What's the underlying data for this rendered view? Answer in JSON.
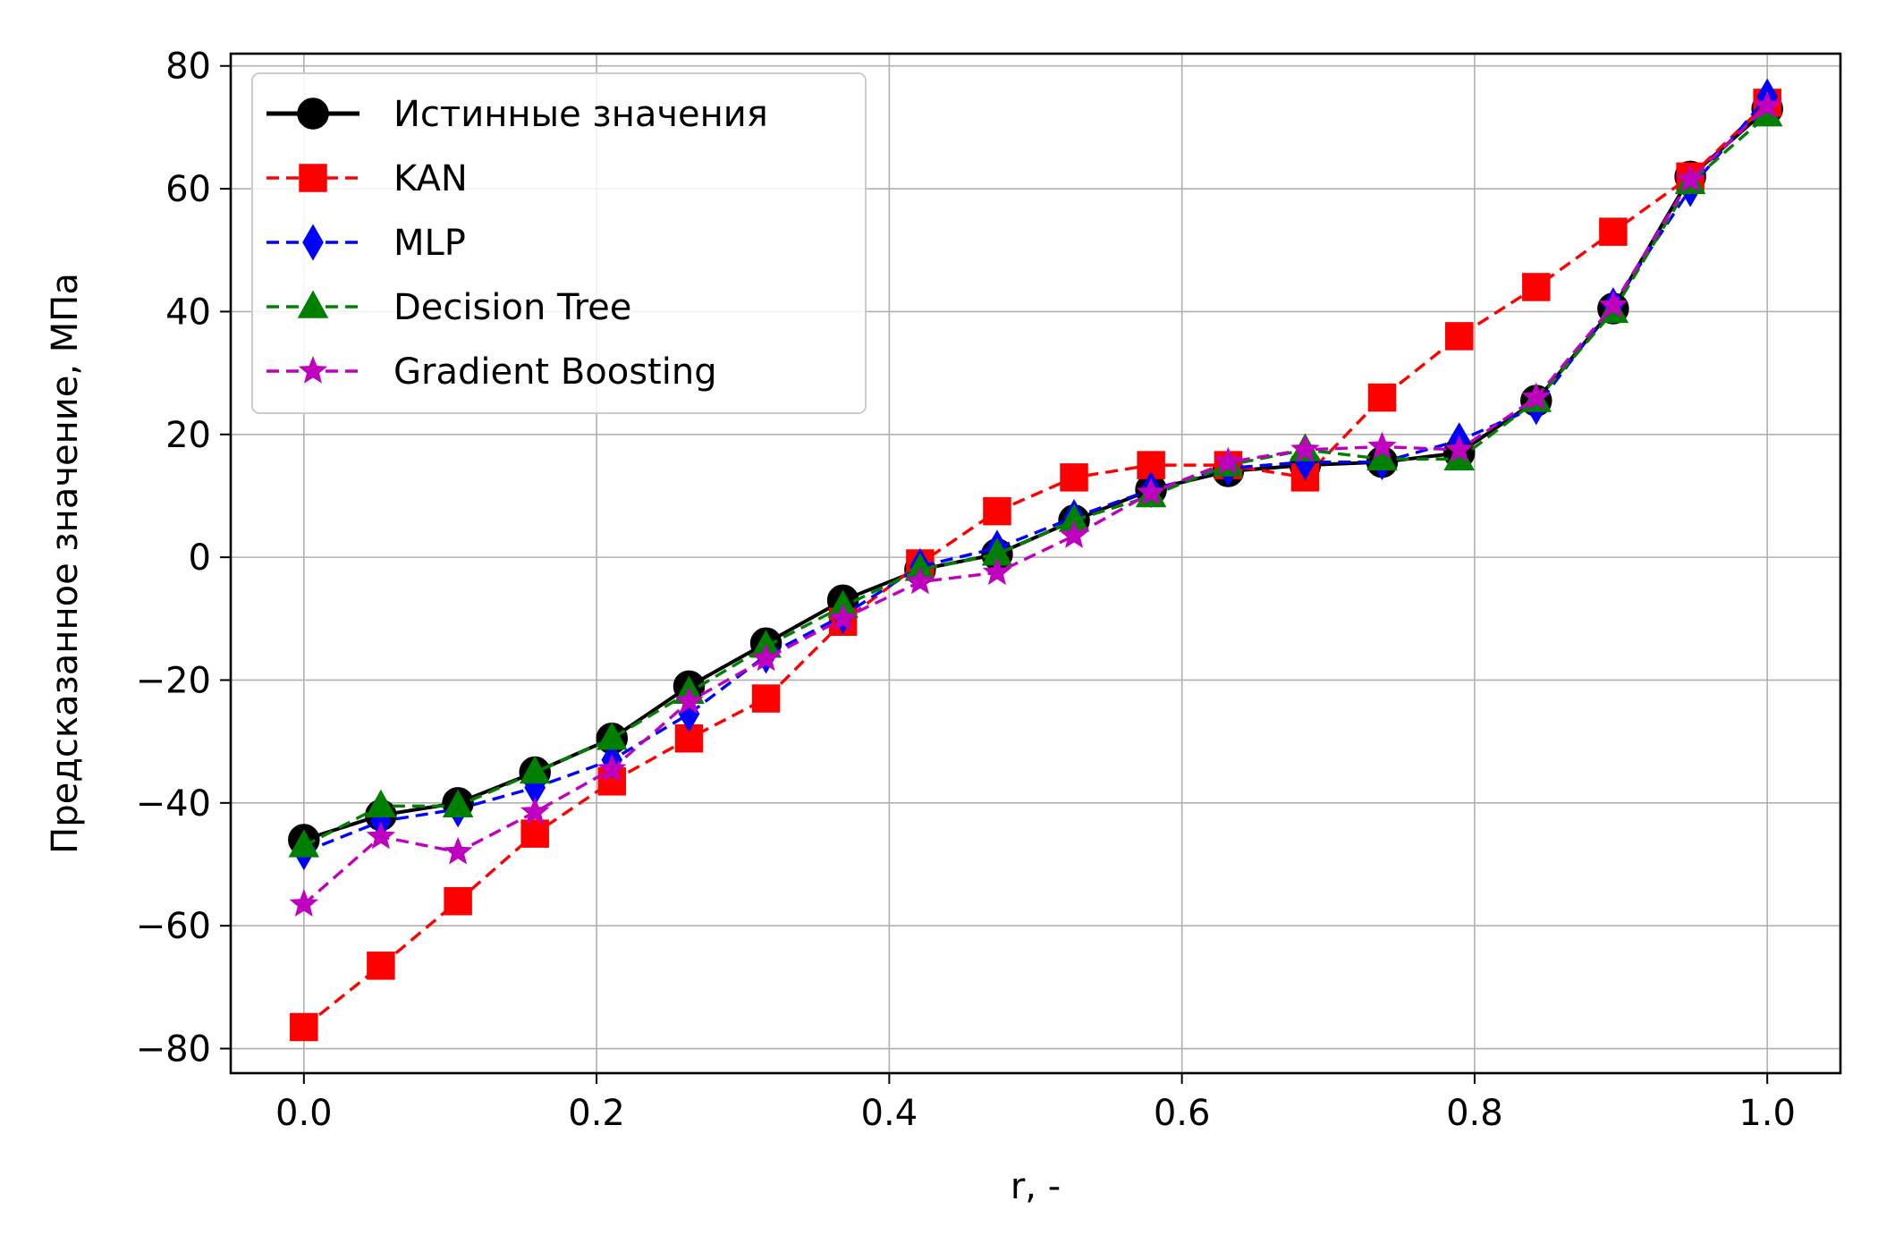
{
  "chart_data": {
    "type": "line",
    "xlabel": "r, -",
    "ylabel": "Предсказанное значение, МПа",
    "xlim": [
      -0.05,
      1.05
    ],
    "ylim": [
      -84,
      82
    ],
    "xticks": [
      0.0,
      0.2,
      0.4,
      0.6,
      0.8,
      1.0
    ],
    "xtick_labels": [
      "0.0",
      "0.2",
      "0.4",
      "0.6",
      "0.8",
      "1.0"
    ],
    "yticks": [
      -80,
      -60,
      -40,
      -20,
      0,
      20,
      40,
      60,
      80
    ],
    "ytick_labels": [
      "−80",
      "−60",
      "−40",
      "−20",
      "0",
      "20",
      "40",
      "60",
      "80"
    ],
    "grid": true,
    "legend_position": "upper-left",
    "x": [
      0.0,
      0.0526,
      0.1053,
      0.1579,
      0.2105,
      0.2632,
      0.3158,
      0.3684,
      0.4211,
      0.4737,
      0.5263,
      0.5789,
      0.6316,
      0.6842,
      0.7368,
      0.7895,
      0.8421,
      0.8947,
      0.9474,
      1.0
    ],
    "series": [
      {
        "name": "Истинные значения",
        "color": "#000000",
        "marker": "circle",
        "linestyle": "solid",
        "values": [
          -46,
          -42,
          -40,
          -35,
          -29.5,
          -21,
          -14,
          -7,
          -2,
          0.5,
          6,
          11,
          14,
          15,
          15.5,
          17,
          25.5,
          40.5,
          62,
          73
        ]
      },
      {
        "name": "KAN",
        "color": "#ff0000",
        "marker": "square",
        "linestyle": "dashed",
        "values": [
          -76.5,
          -66.5,
          -56,
          -45,
          -36.5,
          -29.5,
          -23,
          -10.5,
          -1,
          7.5,
          13,
          15,
          15,
          13,
          26,
          36,
          44,
          53,
          62,
          74
        ]
      },
      {
        "name": "MLP",
        "color": "#0000ff",
        "marker": "thin_diamond",
        "linestyle": "dashed",
        "values": [
          -48,
          -43,
          -41,
          -37.5,
          -33,
          -25.5,
          -16,
          -9.5,
          -1.5,
          1.5,
          6.5,
          11,
          14.5,
          15.5,
          15.5,
          19,
          24.5,
          41,
          60,
          75
        ]
      },
      {
        "name": "Decision Tree",
        "color": "#008000",
        "marker": "triangle",
        "linestyle": "dashed",
        "values": [
          -47,
          -40.5,
          -40.5,
          -35,
          -29.5,
          -22,
          -14.5,
          -8,
          -2,
          0.5,
          6,
          10,
          15,
          17.5,
          16,
          16,
          25.5,
          40,
          61,
          72
        ]
      },
      {
        "name": "Gradient Boosting",
        "color": "#bf00bf",
        "marker": "star",
        "linestyle": "dashed",
        "values": [
          -56.5,
          -45.5,
          -48,
          -41.5,
          -34.5,
          -23.5,
          -16.5,
          -10,
          -4,
          -2.5,
          3.5,
          10.5,
          15.5,
          17.5,
          18,
          17.5,
          26,
          41,
          61.5,
          73.5
        ]
      }
    ]
  }
}
